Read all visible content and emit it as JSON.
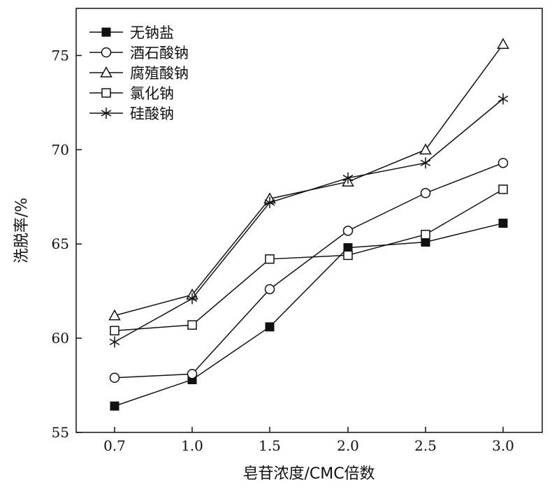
{
  "chart_data": {
    "type": "line",
    "x": [
      0.7,
      1.0,
      1.5,
      2.0,
      2.5,
      3.0
    ],
    "x_tick_labels": [
      "0.7",
      "1.0",
      "1.5",
      "2.0",
      "2.5",
      "3.0"
    ],
    "ylim": [
      55,
      77.5
    ],
    "y_ticks": [
      55,
      60,
      65,
      70,
      75
    ],
    "xlabel": "皂苷浓度/CMC倍数",
    "ylabel": "洗脱率/%",
    "legend_position": "top-left",
    "grid": false,
    "series": [
      {
        "name": "无钠盐",
        "marker": "filled-square",
        "values": [
          56.4,
          57.8,
          60.6,
          64.8,
          65.1,
          66.1
        ]
      },
      {
        "name": "酒石酸钠",
        "marker": "open-circle",
        "values": [
          57.9,
          58.1,
          62.6,
          65.7,
          67.7,
          69.3
        ]
      },
      {
        "name": "腐殖酸钠",
        "marker": "open-triangle",
        "values": [
          61.2,
          62.3,
          67.4,
          68.3,
          70.0,
          75.6
        ]
      },
      {
        "name": "氯化钠",
        "marker": "open-square",
        "values": [
          60.4,
          60.7,
          64.2,
          64.4,
          65.5,
          67.9
        ]
      },
      {
        "name": "硅酸钠",
        "marker": "asterisk",
        "values": [
          59.8,
          62.1,
          67.2,
          68.5,
          69.3,
          72.7
        ]
      }
    ]
  }
}
